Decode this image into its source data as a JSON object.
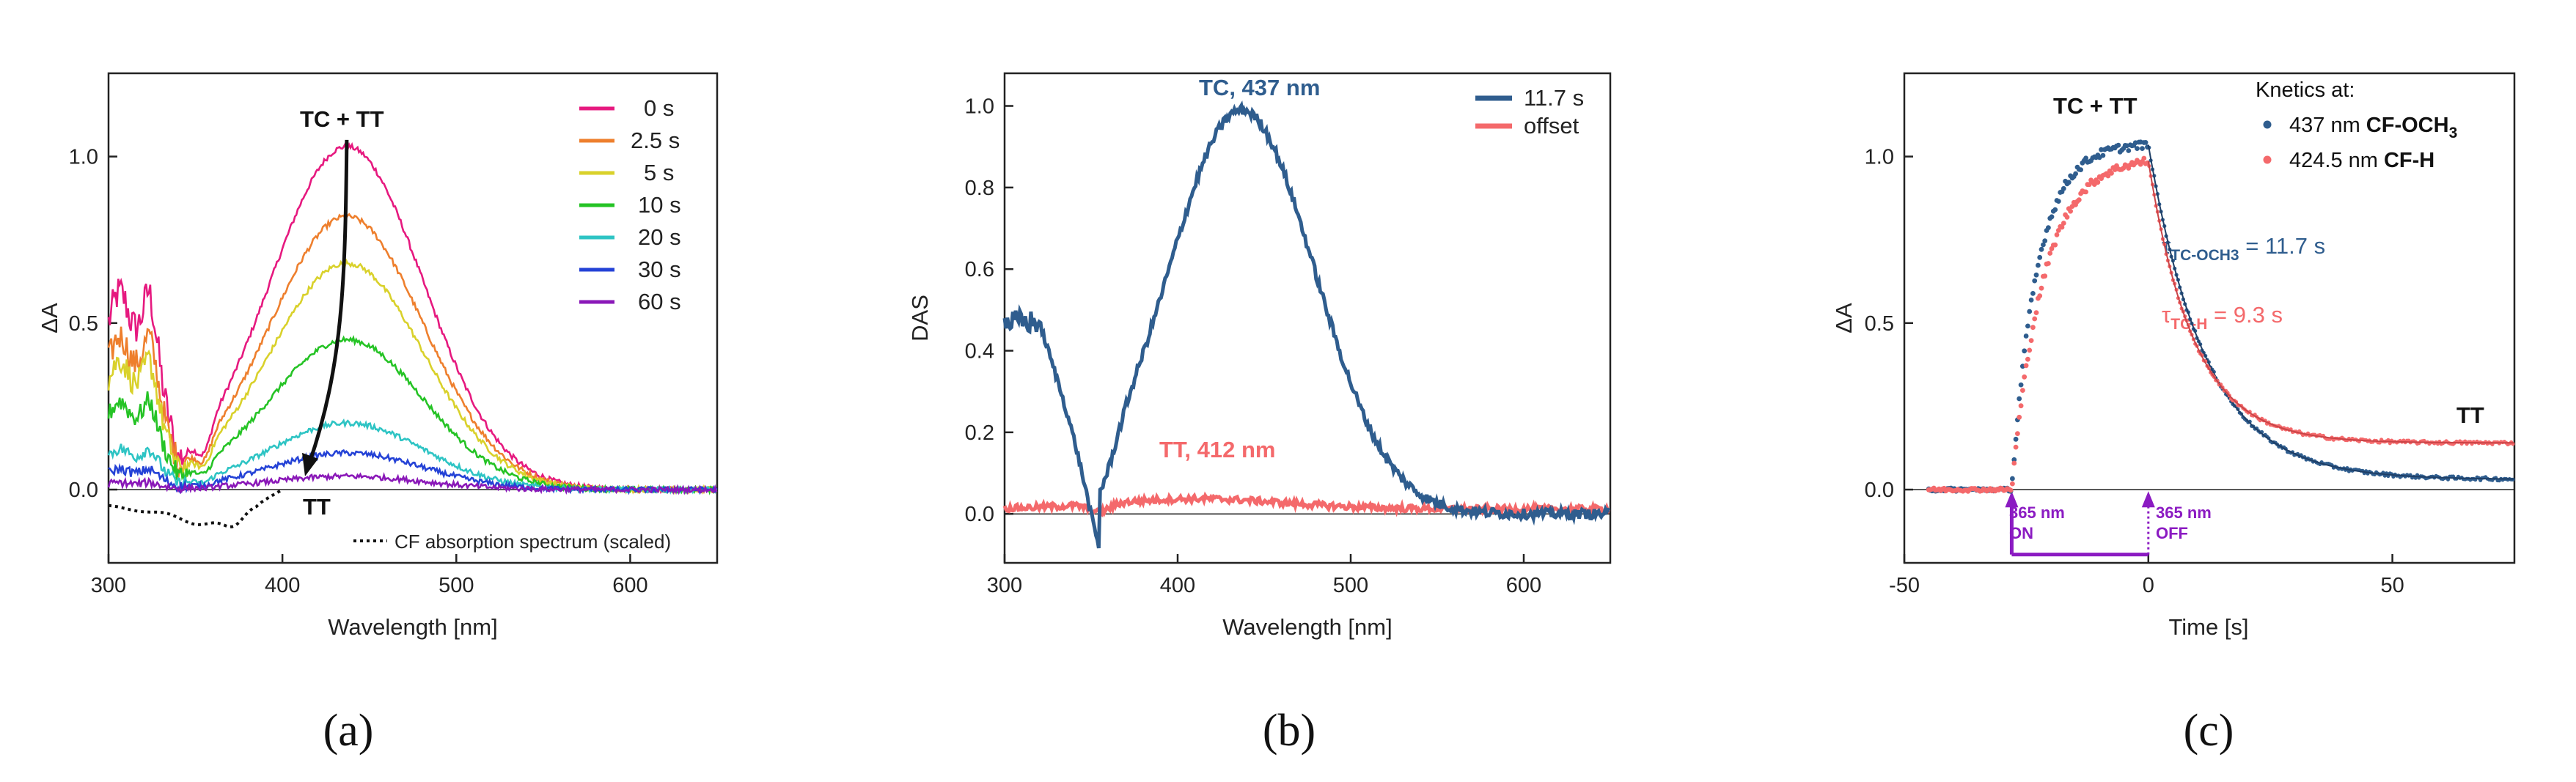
{
  "chart_data": [
    {
      "type": "line",
      "panel": "(a)",
      "xlabel": "Wavelength [nm]",
      "ylabel": "ΔA",
      "xlim": [
        300,
        650
      ],
      "ylim": [
        -0.22,
        1.25
      ],
      "xticks": [
        300,
        400,
        500,
        600
      ],
      "yticks": [
        0.0,
        0.5,
        1.0
      ],
      "ytick_labels": [
        "0.0",
        "0.5",
        "1.0"
      ],
      "series": [
        {
          "name": "0 s",
          "color": "#e6197f",
          "peak": 1.03,
          "uv": 0.58
        },
        {
          "name": "2.5 s",
          "color": "#ee7f2d",
          "peak": 0.82,
          "uv": 0.45
        },
        {
          "name": "5 s",
          "color": "#d9d12b",
          "peak": 0.68,
          "uv": 0.38
        },
        {
          "name": "10 s",
          "color": "#25c325",
          "peak": 0.45,
          "uv": 0.26
        },
        {
          "name": "20 s",
          "color": "#2ec4c4",
          "peak": 0.2,
          "uv": 0.12
        },
        {
          "name": "30 s",
          "color": "#2442d6",
          "peak": 0.11,
          "uv": 0.06
        },
        {
          "name": "60 s",
          "color": "#8a18b8",
          "peak": 0.04,
          "uv": 0.02
        }
      ],
      "reference": {
        "name": "CF absorption spectrum (scaled)",
        "style": "dotted",
        "color": "#111111"
      },
      "annotations": [
        "TC + TT",
        "TT"
      ]
    },
    {
      "type": "line",
      "panel": "(b)",
      "xlabel": "Wavelength [nm]",
      "ylabel": "DAS",
      "xlim": [
        300,
        650
      ],
      "ylim": [
        -0.12,
        1.08
      ],
      "xticks": [
        300,
        400,
        500,
        600
      ],
      "yticks": [
        0.0,
        0.2,
        0.4,
        0.6,
        0.8,
        1.0
      ],
      "ytick_labels": [
        "0.0",
        "0.2",
        "0.4",
        "0.6",
        "0.8",
        "1.0"
      ],
      "series": [
        {
          "name": "11.7 s",
          "color": "#2f5d8e",
          "peak_nm": 437,
          "peak": 0.99
        },
        {
          "name": "offset",
          "color": "#f4696b",
          "peak_nm": 412,
          "peak": 0.035
        }
      ],
      "annotations": [
        "TC, 437 nm",
        "TT, 412 nm"
      ]
    },
    {
      "type": "scatter",
      "panel": "(c)",
      "xlabel": "Time [s]",
      "ylabel": "ΔA",
      "xlim": [
        -50,
        75
      ],
      "ylim": [
        -0.22,
        1.25
      ],
      "xticks": [
        -50,
        0,
        50
      ],
      "yticks": [
        0.0,
        0.5,
        1.0
      ],
      "ytick_labels": [
        "0.0",
        "0.5",
        "1.0"
      ],
      "legend_title": "Knetics at:",
      "series": [
        {
          "name_prefix": "437 nm",
          "name_bold": "CF-OCH",
          "name_sub": "3",
          "color": "#2f5d8e",
          "amplitude": 1.04,
          "tau_on": 5.2,
          "tau_off": 11.7,
          "offset": 0.03
        },
        {
          "name_prefix": "424.5 nm",
          "name_bold": "CF-H",
          "name_sub": "",
          "color": "#f4696b",
          "amplitude": 1.0,
          "tau_on": 6.5,
          "tau_off": 9.3,
          "offset": 0.14
        }
      ],
      "light_on_time": -28,
      "light_off_time": 0,
      "annotations": {
        "peak_label": "TC + TT",
        "tt_label": "TT",
        "tau1_symbol": "τ",
        "tau1_sub": "TC-OCH3",
        "tau1_value": " = 11.7 s",
        "tau2_symbol": "τ",
        "tau2_sub": "TC-H",
        "tau2_value": " = 9.3 s",
        "on_wavelength": "365 nm",
        "on_state": "ON",
        "off_wavelength": "365 nm",
        "off_state": "OFF"
      }
    }
  ],
  "panel_labels": [
    "(a)",
    "(b)",
    "(c)"
  ],
  "colors": {
    "axis": "#222222",
    "uv_arrow": "#8b1bc2"
  }
}
